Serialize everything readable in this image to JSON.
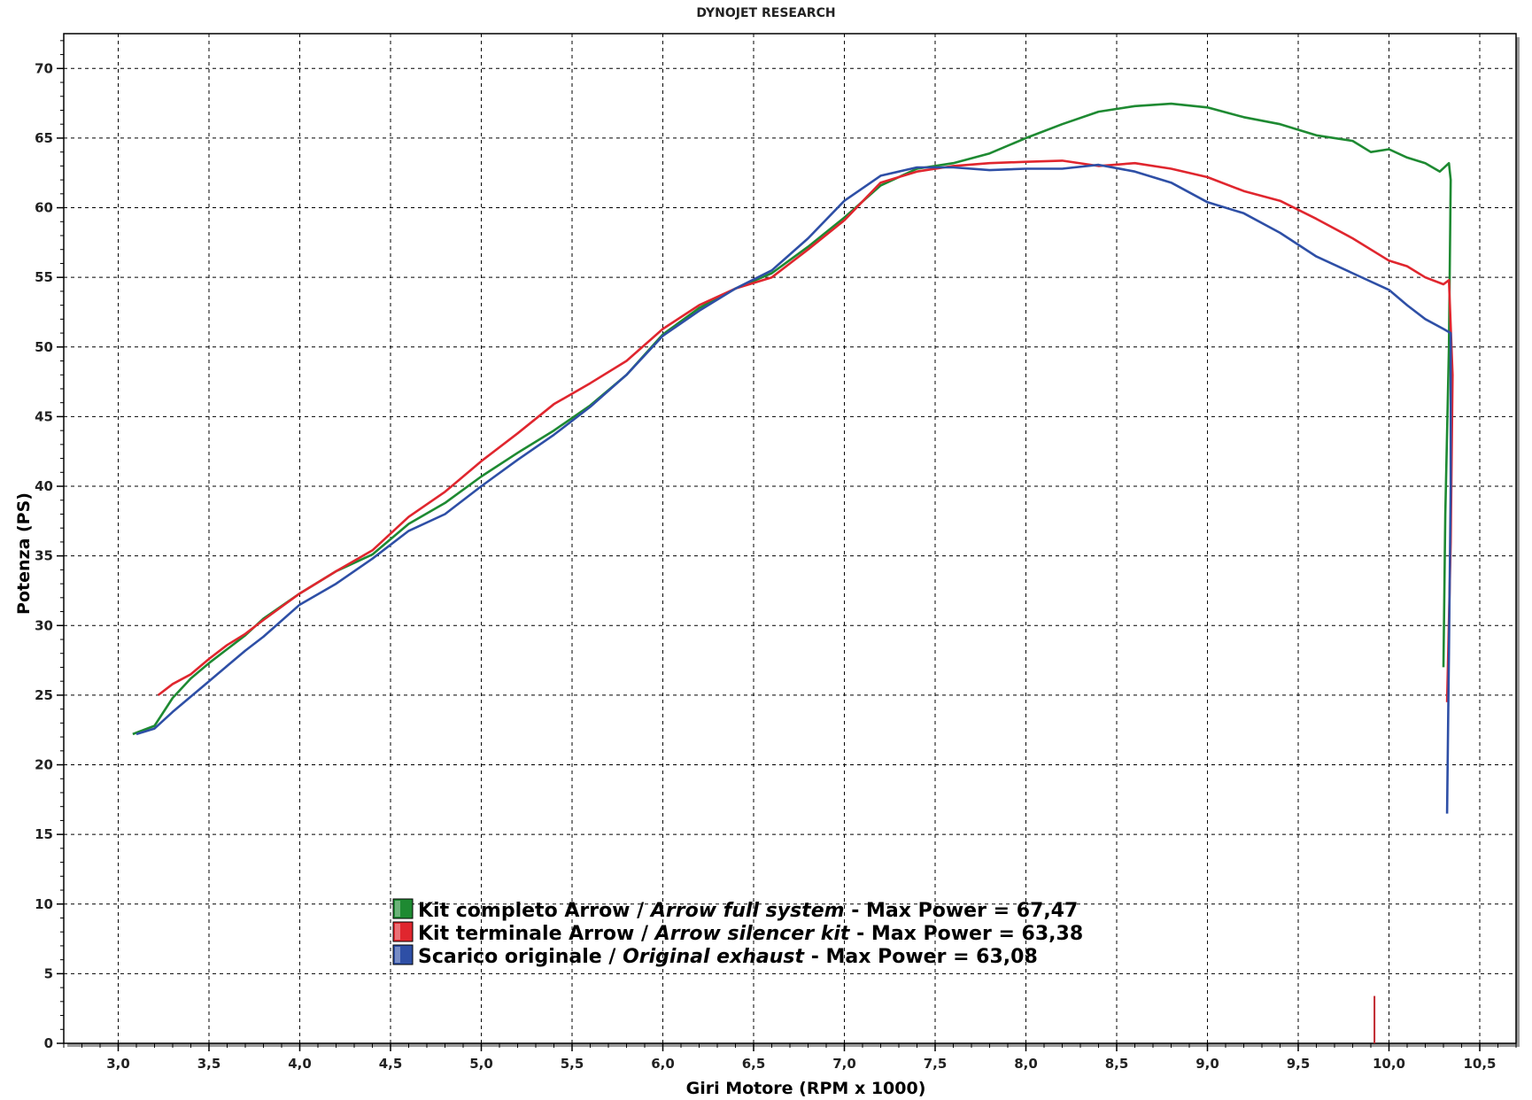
{
  "chart_data": {
    "type": "line",
    "title": "DYNOJET RESEARCH",
    "xlabel": "Giri Motore (RPM x 1000)",
    "ylabel": "Potenza (PS)",
    "xlim": [
      2.7,
      10.7
    ],
    "ylim": [
      0,
      72.5
    ],
    "x_ticks": [
      "3,0",
      "3,5",
      "4,0",
      "4,5",
      "5,0",
      "5,5",
      "6,0",
      "6,5",
      "7,0",
      "7,5",
      "8,0",
      "8,5",
      "9,0",
      "9,5",
      "10,0",
      "10,5"
    ],
    "y_ticks": [
      "0",
      "5",
      "10",
      "15",
      "20",
      "25",
      "30",
      "35",
      "40",
      "45",
      "50",
      "55",
      "60",
      "65",
      "70"
    ],
    "grid": true,
    "legend_position": "bottom-left",
    "series": [
      {
        "name": "Kit completo Arrow / Arrow full system",
        "legend_normal": "Kit completo Arrow / ",
        "legend_italic": "Arrow full system",
        "legend_suffix": " - Max Power = 67,47",
        "color": "#1e8a32",
        "points": [
          [
            3.08,
            22.2
          ],
          [
            3.2,
            22.8
          ],
          [
            3.3,
            24.8
          ],
          [
            3.4,
            26.2
          ],
          [
            3.5,
            27.3
          ],
          [
            3.6,
            28.3
          ],
          [
            3.7,
            29.3
          ],
          [
            3.8,
            30.5
          ],
          [
            4.0,
            32.3
          ],
          [
            4.2,
            33.9
          ],
          [
            4.4,
            35.1
          ],
          [
            4.6,
            37.3
          ],
          [
            4.8,
            38.8
          ],
          [
            5.0,
            40.7
          ],
          [
            5.2,
            42.4
          ],
          [
            5.4,
            44.0
          ],
          [
            5.6,
            45.8
          ],
          [
            5.8,
            48.0
          ],
          [
            6.0,
            50.9
          ],
          [
            6.2,
            52.8
          ],
          [
            6.4,
            54.2
          ],
          [
            6.6,
            55.3
          ],
          [
            6.8,
            57.2
          ],
          [
            7.0,
            59.3
          ],
          [
            7.2,
            61.6
          ],
          [
            7.4,
            62.8
          ],
          [
            7.6,
            63.2
          ],
          [
            7.8,
            63.9
          ],
          [
            8.0,
            65.0
          ],
          [
            8.2,
            66.0
          ],
          [
            8.4,
            66.9
          ],
          [
            8.6,
            67.3
          ],
          [
            8.8,
            67.47
          ],
          [
            9.0,
            67.2
          ],
          [
            9.2,
            66.5
          ],
          [
            9.4,
            66.0
          ],
          [
            9.6,
            65.2
          ],
          [
            9.8,
            64.8
          ],
          [
            9.9,
            64.0
          ],
          [
            10.0,
            64.2
          ],
          [
            10.1,
            63.6
          ],
          [
            10.2,
            63.2
          ],
          [
            10.28,
            62.6
          ],
          [
            10.33,
            63.2
          ],
          [
            10.34,
            62.0
          ],
          [
            10.33,
            50.0
          ],
          [
            10.31,
            38.0
          ],
          [
            10.3,
            27.0
          ]
        ]
      },
      {
        "name": "Kit terminale Arrow / Arrow silencer kit",
        "legend_normal": "Kit terminale Arrow / ",
        "legend_italic": "Arrow silencer kit",
        "legend_suffix": " - Max Power = 63,38",
        "color": "#e0262e",
        "points": [
          [
            3.22,
            25.0
          ],
          [
            3.3,
            25.8
          ],
          [
            3.4,
            26.5
          ],
          [
            3.5,
            27.6
          ],
          [
            3.6,
            28.6
          ],
          [
            3.7,
            29.4
          ],
          [
            3.8,
            30.4
          ],
          [
            4.0,
            32.3
          ],
          [
            4.2,
            33.9
          ],
          [
            4.4,
            35.4
          ],
          [
            4.6,
            37.8
          ],
          [
            4.8,
            39.6
          ],
          [
            5.0,
            41.8
          ],
          [
            5.2,
            43.8
          ],
          [
            5.4,
            45.9
          ],
          [
            5.6,
            47.4
          ],
          [
            5.8,
            49.0
          ],
          [
            6.0,
            51.3
          ],
          [
            6.2,
            53.0
          ],
          [
            6.4,
            54.2
          ],
          [
            6.6,
            55.0
          ],
          [
            6.8,
            57.0
          ],
          [
            7.0,
            59.1
          ],
          [
            7.2,
            61.8
          ],
          [
            7.4,
            62.6
          ],
          [
            7.6,
            63.0
          ],
          [
            7.8,
            63.2
          ],
          [
            8.0,
            63.3
          ],
          [
            8.2,
            63.38
          ],
          [
            8.4,
            63.0
          ],
          [
            8.6,
            63.2
          ],
          [
            8.8,
            62.8
          ],
          [
            9.0,
            62.2
          ],
          [
            9.2,
            61.2
          ],
          [
            9.4,
            60.5
          ],
          [
            9.6,
            59.2
          ],
          [
            9.8,
            57.8
          ],
          [
            10.0,
            56.2
          ],
          [
            10.1,
            55.8
          ],
          [
            10.2,
            55.0
          ],
          [
            10.3,
            54.5
          ],
          [
            10.33,
            54.8
          ],
          [
            10.35,
            48.0
          ],
          [
            10.34,
            36.0
          ],
          [
            10.32,
            24.5
          ]
        ]
      },
      {
        "name": "Scarico originale / Original exhaust",
        "legend_normal": "Scarico originale / ",
        "legend_italic": "Original exhaust",
        "legend_suffix": " - Max Power = 63,08",
        "color": "#2e4fa6",
        "points": [
          [
            3.1,
            22.2
          ],
          [
            3.2,
            22.6
          ],
          [
            3.3,
            23.8
          ],
          [
            3.4,
            24.9
          ],
          [
            3.5,
            26.0
          ],
          [
            3.6,
            27.1
          ],
          [
            3.7,
            28.2
          ],
          [
            3.8,
            29.2
          ],
          [
            4.0,
            31.5
          ],
          [
            4.2,
            33.0
          ],
          [
            4.4,
            34.8
          ],
          [
            4.6,
            36.8
          ],
          [
            4.8,
            38.0
          ],
          [
            5.0,
            40.0
          ],
          [
            5.2,
            41.9
          ],
          [
            5.4,
            43.7
          ],
          [
            5.6,
            45.7
          ],
          [
            5.8,
            48.0
          ],
          [
            6.0,
            50.8
          ],
          [
            6.2,
            52.6
          ],
          [
            6.4,
            54.2
          ],
          [
            6.6,
            55.5
          ],
          [
            6.8,
            57.8
          ],
          [
            7.0,
            60.5
          ],
          [
            7.2,
            62.3
          ],
          [
            7.4,
            62.9
          ],
          [
            7.6,
            62.9
          ],
          [
            7.8,
            62.7
          ],
          [
            8.0,
            62.8
          ],
          [
            8.2,
            62.8
          ],
          [
            8.4,
            63.08
          ],
          [
            8.6,
            62.6
          ],
          [
            8.8,
            61.8
          ],
          [
            9.0,
            60.4
          ],
          [
            9.2,
            59.6
          ],
          [
            9.4,
            58.2
          ],
          [
            9.6,
            56.5
          ],
          [
            9.8,
            55.3
          ],
          [
            10.0,
            54.1
          ],
          [
            10.1,
            53.0
          ],
          [
            10.2,
            52.0
          ],
          [
            10.3,
            51.3
          ],
          [
            10.34,
            51.0
          ],
          [
            10.34,
            40.0
          ],
          [
            10.33,
            28.0
          ],
          [
            10.32,
            16.5
          ]
        ]
      }
    ],
    "marker": {
      "x": 9.92,
      "y_from": 0,
      "y_to": 3.4,
      "color": "#c0262e"
    }
  }
}
